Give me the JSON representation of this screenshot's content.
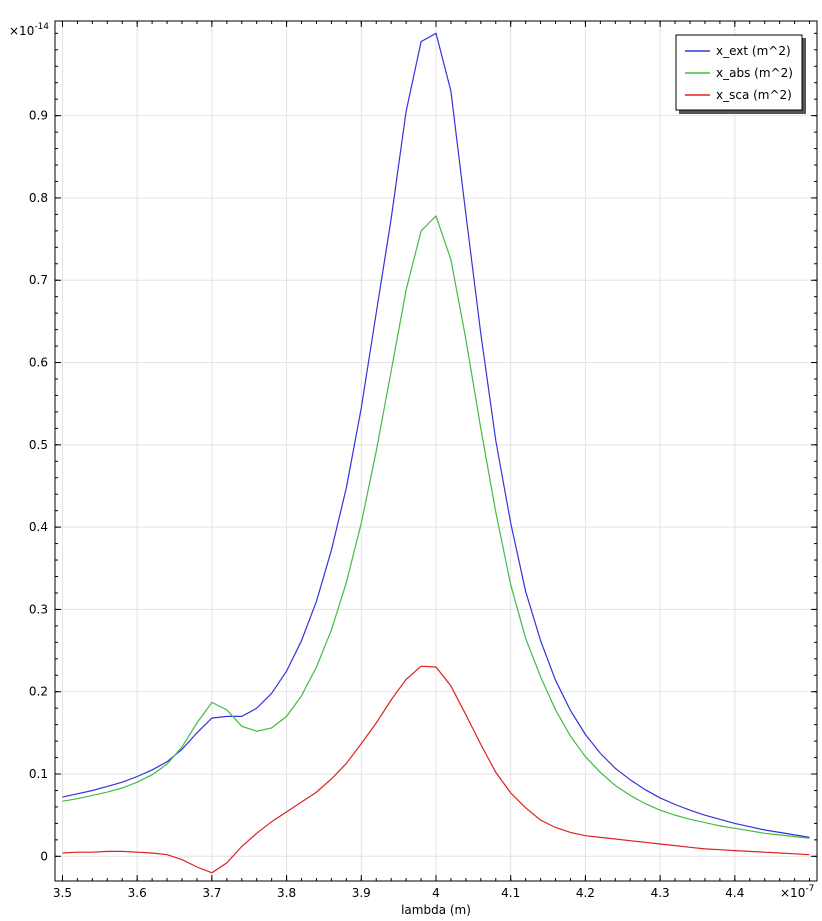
{
  "chart_data": {
    "type": "line",
    "title": "",
    "xlabel": "lambda (m)",
    "ylabel": "",
    "x_multiplier": "×10",
    "x_exponent": "-7",
    "y_multiplier": "×10",
    "y_exponent": "-14",
    "xlim": [
      3.49,
      4.51
    ],
    "ylim": [
      -0.03,
      1.015
    ],
    "xticks": [
      3.5,
      3.6,
      3.7,
      3.8,
      3.9,
      4.0,
      4.1,
      4.2,
      4.3,
      4.4
    ],
    "xtick_labels": [
      "3.5",
      "3.6",
      "3.7",
      "3.8",
      "3.9",
      "4",
      "4.1",
      "4.2",
      "4.3",
      "4.4"
    ],
    "yticks": [
      0,
      0.1,
      0.2,
      0.3,
      0.4,
      0.5,
      0.6,
      0.7,
      0.8,
      0.9
    ],
    "ytick_labels": [
      "0",
      "0.1",
      "0.2",
      "0.3",
      "0.4",
      "0.5",
      "0.6",
      "0.7",
      "0.8",
      "0.9"
    ],
    "grid": true,
    "legend_position": "top-right",
    "x": [
      3.5,
      3.52,
      3.54,
      3.56,
      3.58,
      3.6,
      3.62,
      3.64,
      3.66,
      3.68,
      3.7,
      3.72,
      3.74,
      3.76,
      3.78,
      3.8,
      3.82,
      3.84,
      3.86,
      3.88,
      3.9,
      3.92,
      3.94,
      3.96,
      3.98,
      4.0,
      4.02,
      4.04,
      4.06,
      4.08,
      4.1,
      4.12,
      4.14,
      4.16,
      4.18,
      4.2,
      4.22,
      4.24,
      4.26,
      4.28,
      4.3,
      4.32,
      4.34,
      4.36,
      4.38,
      4.4,
      4.42,
      4.44,
      4.46,
      4.48,
      4.5
    ],
    "series": [
      {
        "name": "x_ext (m^2)",
        "color": "#3333dd",
        "values": [
          0.072,
          0.076,
          0.08,
          0.085,
          0.09,
          0.097,
          0.105,
          0.115,
          0.13,
          0.15,
          0.168,
          0.17,
          0.17,
          0.18,
          0.198,
          0.225,
          0.262,
          0.31,
          0.372,
          0.448,
          0.545,
          0.66,
          0.775,
          0.905,
          0.99,
          1.0,
          0.93,
          0.78,
          0.635,
          0.505,
          0.405,
          0.322,
          0.262,
          0.214,
          0.177,
          0.148,
          0.125,
          0.107,
          0.093,
          0.081,
          0.071,
          0.063,
          0.056,
          0.05,
          0.045,
          0.04,
          0.036,
          0.032,
          0.029,
          0.026,
          0.023
        ]
      },
      {
        "name": "x_abs (m^2)",
        "color": "#44bb44",
        "values": [
          0.067,
          0.07,
          0.074,
          0.078,
          0.083,
          0.09,
          0.099,
          0.112,
          0.133,
          0.162,
          0.187,
          0.178,
          0.158,
          0.152,
          0.156,
          0.17,
          0.195,
          0.23,
          0.275,
          0.333,
          0.405,
          0.492,
          0.59,
          0.688,
          0.76,
          0.778,
          0.725,
          0.628,
          0.52,
          0.418,
          0.33,
          0.265,
          0.218,
          0.178,
          0.146,
          0.121,
          0.102,
          0.086,
          0.074,
          0.064,
          0.056,
          0.05,
          0.045,
          0.041,
          0.037,
          0.034,
          0.031,
          0.028,
          0.026,
          0.024,
          0.022
        ]
      },
      {
        "name": "x_sca (m^2)",
        "color": "#dd2222",
        "values": [
          0.004,
          0.005,
          0.005,
          0.006,
          0.006,
          0.005,
          0.004,
          0.002,
          -0.004,
          -0.013,
          -0.02,
          -0.008,
          0.012,
          0.028,
          0.042,
          0.054,
          0.066,
          0.078,
          0.094,
          0.113,
          0.137,
          0.162,
          0.19,
          0.215,
          0.231,
          0.23,
          0.207,
          0.172,
          0.136,
          0.102,
          0.077,
          0.059,
          0.044,
          0.035,
          0.029,
          0.025,
          0.023,
          0.021,
          0.019,
          0.017,
          0.015,
          0.013,
          0.011,
          0.009,
          0.008,
          0.007,
          0.006,
          0.005,
          0.004,
          0.003,
          0.002
        ]
      }
    ]
  }
}
